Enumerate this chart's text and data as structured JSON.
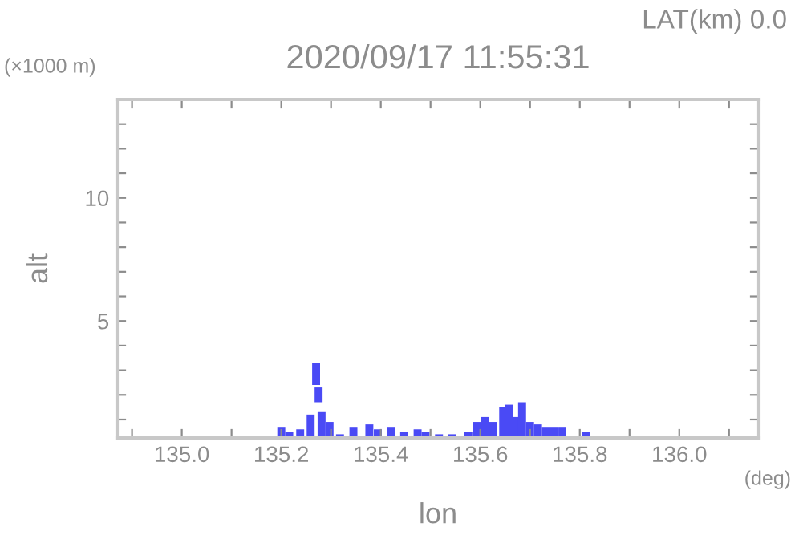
{
  "chart_data": {
    "type": "bar",
    "title": "2020/09/17 11:55:31",
    "xlabel": "lon",
    "ylabel": "alt",
    "annotations": [
      "LAT(km) 0.0",
      "(×1000 m)",
      "(deg)"
    ],
    "x": [
      135.2,
      135.216,
      135.238,
      135.259,
      135.27,
      135.275,
      135.281,
      135.297,
      135.318,
      135.345,
      135.377,
      135.394,
      135.42,
      135.447,
      135.474,
      135.49,
      135.517,
      135.544,
      135.576,
      135.593,
      135.609,
      135.625,
      135.646,
      135.657,
      135.673,
      135.684,
      135.7,
      135.716,
      135.732,
      135.748,
      135.765,
      135.813
    ],
    "values": [
      0.7,
      0.5,
      0.6,
      1.2,
      0.9,
      0.6,
      1.3,
      0.9,
      0.4,
      0.7,
      0.8,
      0.6,
      0.7,
      0.5,
      0.6,
      0.5,
      0.4,
      0.4,
      0.5,
      0.9,
      1.1,
      0.9,
      1.5,
      1.6,
      1.1,
      1.7,
      0.9,
      0.8,
      0.7,
      0.7,
      0.7,
      0.5
    ],
    "base": [
      0,
      0,
      0,
      0,
      2.4,
      1.7,
      0,
      0,
      0,
      0,
      0,
      0,
      0,
      0,
      0,
      0,
      0,
      0,
      0,
      0,
      0,
      0,
      0,
      0,
      0,
      0,
      0,
      0,
      0,
      0,
      0,
      0
    ],
    "color": "#4a4af5",
    "xlim": [
      134.87,
      136.16
    ],
    "ylim": [
      0.25,
      14
    ],
    "xticks": [
      {
        "value": 134.9,
        "label": null
      },
      {
        "value": 135.0,
        "label": "135.0"
      },
      {
        "value": 135.1,
        "label": null
      },
      {
        "value": 135.2,
        "label": "135.2"
      },
      {
        "value": 135.3,
        "label": null
      },
      {
        "value": 135.4,
        "label": "135.4"
      },
      {
        "value": 135.5,
        "label": null
      },
      {
        "value": 135.6,
        "label": "135.6"
      },
      {
        "value": 135.7,
        "label": null
      },
      {
        "value": 135.8,
        "label": "135.8"
      },
      {
        "value": 135.9,
        "label": null
      },
      {
        "value": 136.0,
        "label": "136.0"
      },
      {
        "value": 136.1,
        "label": null
      }
    ],
    "yticks": [
      {
        "value": 1,
        "label": null
      },
      {
        "value": 2,
        "label": null
      },
      {
        "value": 3,
        "label": null
      },
      {
        "value": 4,
        "label": null
      },
      5,
      {
        "value": 6,
        "label": null
      },
      {
        "value": 7,
        "label": null
      },
      {
        "value": 8,
        "label": null
      },
      {
        "value": 9,
        "label": null
      },
      10,
      {
        "value": 11,
        "label": null
      },
      {
        "value": 12,
        "label": null
      },
      {
        "value": 13,
        "label": null
      }
    ],
    "grid": false,
    "legend": false
  }
}
